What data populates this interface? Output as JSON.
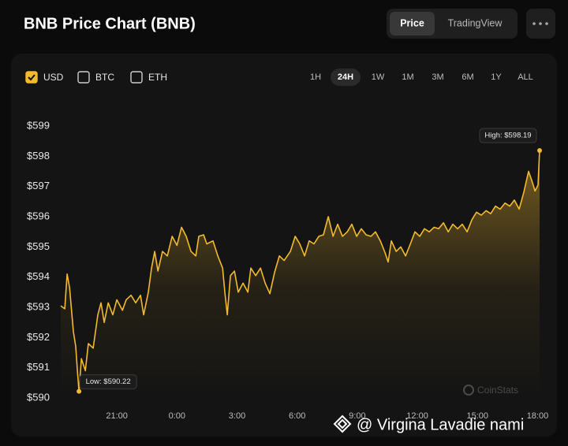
{
  "chart_data": {
    "type": "line",
    "title": "BNB Price Chart (BNB)",
    "color": "#f3ba2f",
    "x": [
      0.2,
      0.4,
      0.52,
      0.64,
      0.83,
      0.95,
      1.03,
      1.11,
      1.23,
      1.43,
      1.58,
      1.82,
      2.05,
      2.21,
      2.37,
      2.57,
      2.8,
      3.0,
      3.28,
      3.47,
      3.71,
      3.94,
      4.18,
      4.34,
      4.57,
      4.73,
      4.89,
      5.05,
      5.28,
      5.52,
      5.76,
      6.0,
      6.23,
      6.46,
      6.7,
      6.94,
      7.09,
      7.33,
      7.49,
      7.8,
      8.04,
      8.28,
      8.39,
      8.51,
      8.67,
      8.87,
      9.06,
      9.3,
      9.54,
      9.69,
      9.93,
      10.17,
      10.4,
      10.64,
      10.87,
      11.11,
      11.35,
      11.66,
      11.9,
      12.13,
      12.37,
      12.6,
      12.84,
      13.08,
      13.31,
      13.55,
      13.79,
      14.02,
      14.26,
      14.5,
      14.73,
      14.97,
      15.2,
      15.44,
      15.68,
      15.91,
      16.15,
      16.39,
      16.54,
      16.7,
      16.94,
      17.17,
      17.41,
      17.65,
      17.88,
      18.12,
      18.35,
      18.59,
      18.83,
      19.06,
      19.3,
      19.54,
      19.77,
      20.01,
      20.24,
      20.48,
      20.72,
      20.95,
      21.19,
      21.43,
      21.66,
      21.9,
      22.13,
      22.37,
      22.61,
      22.84,
      23.08,
      23.31,
      23.55,
      23.71,
      23.87,
      24.02,
      24.1
    ],
    "values": [
      593.05,
      592.95,
      594.1,
      593.65,
      592.2,
      591.7,
      590.9,
      590.22,
      591.3,
      590.9,
      591.8,
      591.65,
      592.75,
      593.15,
      592.5,
      593.15,
      592.75,
      593.25,
      592.9,
      593.25,
      593.4,
      593.15,
      593.4,
      592.75,
      593.5,
      594.3,
      594.85,
      594.2,
      594.85,
      594.7,
      595.35,
      595.05,
      595.65,
      595.35,
      594.85,
      594.7,
      595.35,
      595.4,
      595.1,
      595.2,
      594.7,
      594.3,
      593.5,
      592.75,
      594.05,
      594.2,
      593.5,
      593.8,
      593.5,
      594.3,
      594.05,
      594.3,
      593.8,
      593.45,
      594.15,
      594.7,
      594.55,
      594.85,
      595.35,
      595.1,
      594.7,
      595.2,
      595.1,
      595.35,
      595.4,
      596.0,
      595.35,
      595.75,
      595.35,
      595.5,
      595.75,
      595.35,
      595.6,
      595.4,
      595.35,
      595.5,
      595.2,
      594.8,
      594.5,
      595.2,
      594.85,
      595.0,
      594.7,
      595.1,
      595.5,
      595.35,
      595.6,
      595.5,
      595.65,
      595.6,
      595.8,
      595.5,
      595.75,
      595.6,
      595.75,
      595.5,
      595.9,
      596.15,
      596.05,
      596.2,
      596.1,
      596.35,
      596.25,
      596.45,
      596.35,
      596.55,
      596.25,
      596.8,
      597.5,
      597.2,
      596.85,
      597.05,
      598.19
    ],
    "xlim": [
      0.2,
      24.1
    ],
    "xticks": [
      {
        "value": 3,
        "label": "21:00"
      },
      {
        "value": 6,
        "label": "0:00"
      },
      {
        "value": 9,
        "label": "3:00"
      },
      {
        "value": 12,
        "label": "6:00"
      },
      {
        "value": 15,
        "label": "9:00"
      },
      {
        "value": 18,
        "label": "12:00"
      },
      {
        "value": 21,
        "label": "15:00"
      },
      {
        "value": 24,
        "label": "18:00"
      }
    ],
    "ylim": [
      590,
      599
    ],
    "yticks": [
      {
        "value": 590,
        "label": "$590"
      },
      {
        "value": 591,
        "label": "$591"
      },
      {
        "value": 592,
        "label": "$592"
      },
      {
        "value": 593,
        "label": "$593"
      },
      {
        "value": 594,
        "label": "$594"
      },
      {
        "value": 595,
        "label": "$595"
      },
      {
        "value": 596,
        "label": "$596"
      },
      {
        "value": 597,
        "label": "$597"
      },
      {
        "value": 598,
        "label": "$598"
      },
      {
        "value": 599,
        "label": "$599"
      }
    ],
    "grid": false,
    "annotations": [
      {
        "text": "High: $598.19",
        "x": 24.1,
        "y": 598.19
      },
      {
        "text": "Low: $590.22",
        "x": 1.11,
        "y": 590.22
      }
    ]
  },
  "controls": {
    "tabs": [
      {
        "label": "Price",
        "active": true
      },
      {
        "label": "TradingView",
        "active": false
      }
    ],
    "currencies": [
      {
        "label": "USD",
        "checked": true
      },
      {
        "label": "BTC",
        "checked": false
      },
      {
        "label": "ETH",
        "checked": false
      }
    ],
    "ranges": [
      {
        "label": "1H",
        "active": false
      },
      {
        "label": "24H",
        "active": true
      },
      {
        "label": "1W",
        "active": false
      },
      {
        "label": "1M",
        "active": false
      },
      {
        "label": "3M",
        "active": false
      },
      {
        "label": "6M",
        "active": false
      },
      {
        "label": "1Y",
        "active": false
      },
      {
        "label": "ALL",
        "active": false
      }
    ]
  },
  "watermark": "CoinStats",
  "credit": "@ Virgina Lavadie nami"
}
